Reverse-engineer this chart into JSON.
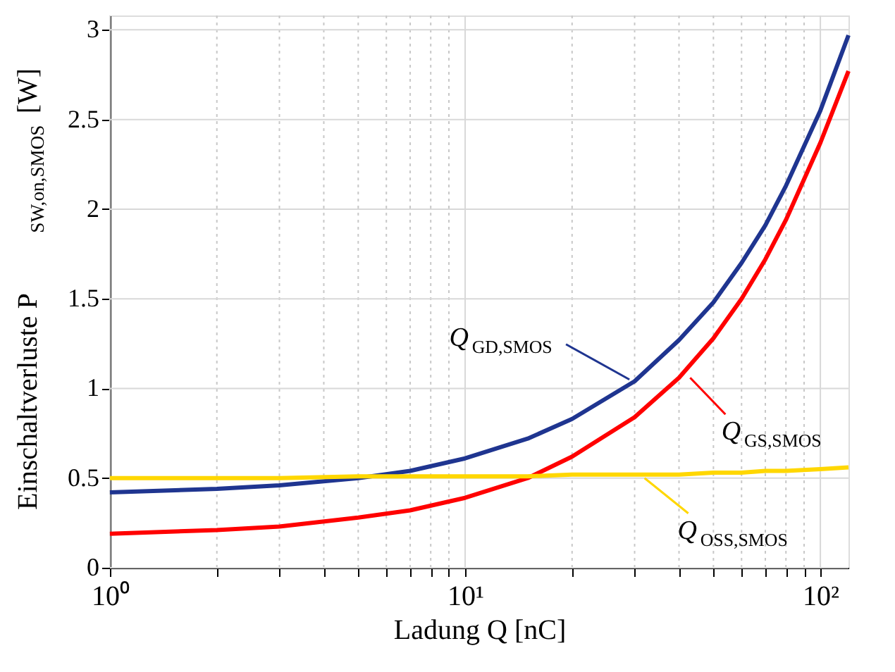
{
  "chart_data": {
    "type": "line",
    "xlabel": "Ladung Q [nC]",
    "ylabel": "Einschaltverluste P$_{SW,on,SMOS}$ [W]",
    "x": [
      1,
      2,
      3,
      5,
      7,
      10,
      15,
      20,
      30,
      40,
      50,
      60,
      70,
      80,
      100,
      120
    ],
    "series": [
      {
        "color": "#1f3590",
        "values": [
          0.42,
          0.44,
          0.46,
          0.5,
          0.54,
          0.61,
          0.72,
          0.83,
          1.04,
          1.27,
          1.48,
          1.7,
          1.91,
          2.13,
          2.55,
          2.97
        ]
      },
      {
        "color": "#ff0000",
        "values": [
          0.19,
          0.21,
          0.23,
          0.28,
          0.32,
          0.39,
          0.5,
          0.62,
          0.84,
          1.06,
          1.28,
          1.5,
          1.72,
          1.94,
          2.37,
          2.77
        ]
      },
      {
        "color": "#ffd700",
        "values": [
          0.5,
          0.5,
          0.5,
          0.51,
          0.51,
          0.51,
          0.51,
          0.52,
          0.52,
          0.52,
          0.53,
          0.53,
          0.54,
          0.54,
          0.55,
          0.56
        ]
      }
    ],
    "annotations": [
      {
        "text": "Q$_{GD,SMOS}$",
        "x": 29,
        "y": 1.05
      },
      {
        "text": "Q$_{GS,SMOS}$",
        "x": 43,
        "y": 1.06
      },
      {
        "text": "Q$_{OSS,SMOS}$",
        "x": 32,
        "y": 0.5
      }
    ],
    "log": "x",
    "xlim": [
      1,
      120
    ],
    "ylim": [
      0,
      3.08
    ],
    "xticks": [
      {
        "value": 1,
        "label": "10⁰"
      },
      {
        "value": 2,
        "label": null
      },
      {
        "value": 3,
        "label": null
      },
      {
        "value": 4,
        "label": null
      },
      {
        "value": 5,
        "label": null
      },
      {
        "value": 6,
        "label": null
      },
      {
        "value": 7,
        "label": null
      },
      {
        "value": 8,
        "label": null
      },
      {
        "value": 9,
        "label": null
      },
      {
        "value": 10,
        "label": "10¹"
      },
      {
        "value": 20,
        "label": null
      },
      {
        "value": 30,
        "label": null
      },
      {
        "value": 40,
        "label": null
      },
      {
        "value": 50,
        "label": null
      },
      {
        "value": 60,
        "label": null
      },
      {
        "value": 70,
        "label": null
      },
      {
        "value": 80,
        "label": null
      },
      {
        "value": 90,
        "label": null
      },
      {
        "value": 100,
        "label": "10²"
      }
    ],
    "yticks": [
      0,
      0.5,
      1,
      1.5,
      2,
      2.5,
      3
    ],
    "grid": true,
    "legend": false,
    "line_style": "solid",
    "marker": "none"
  }
}
